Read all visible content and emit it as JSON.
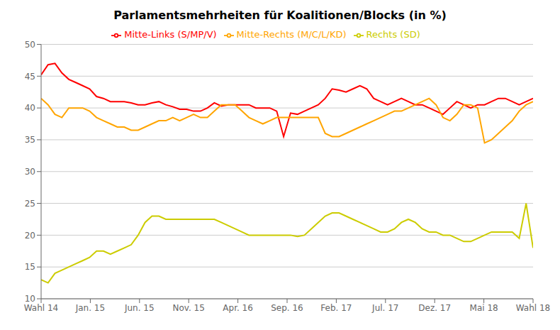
{
  "chart_data": {
    "type": "line",
    "title": "Parlamentsmehrheiten für Koalitionen/Blocks (in %)",
    "x": [
      0,
      0.1408,
      0.2817,
      0.4225,
      0.5634,
      0.7042,
      0.8451,
      0.9859,
      1.1268,
      1.2676,
      1.4085,
      1.5493,
      1.6901,
      1.831,
      1.9718,
      2.1127,
      2.2535,
      2.3944,
      2.5352,
      2.6761,
      2.8169,
      2.9577,
      3.0986,
      3.2394,
      3.3803,
      3.5211,
      3.662,
      3.8028,
      3.9437,
      4.0845,
      4.2254,
      4.3662,
      4.507,
      4.6479,
      4.7887,
      4.9296,
      5.0704,
      5.2113,
      5.3521,
      5.493,
      5.6338,
      5.7746,
      5.9155,
      6.0563,
      6.1972,
      6.338,
      6.4789,
      6.6197,
      6.7606,
      6.9014,
      7.0423,
      7.1831,
      7.3239,
      7.4648,
      7.6056,
      7.7465,
      7.8873,
      8.0282,
      8.169,
      8.3099,
      8.4507,
      8.5915,
      8.7324,
      8.8732,
      9.0141,
      9.1549,
      9.2958,
      9.4366,
      9.5775,
      9.7183,
      9.8592,
      10
    ],
    "xlim": [
      0,
      10
    ],
    "xticks": [
      {
        "value": 0,
        "label": "Wahl 14"
      },
      {
        "value": 1,
        "label": "Jan. 15"
      },
      {
        "value": 2,
        "label": "Jun. 15"
      },
      {
        "value": 3,
        "label": "Nov. 15"
      },
      {
        "value": 4,
        "label": "Apr. 16"
      },
      {
        "value": 5,
        "label": "Sep. 16"
      },
      {
        "value": 6,
        "label": "Feb. 17"
      },
      {
        "value": 7,
        "label": "Jul. 17"
      },
      {
        "value": 8,
        "label": "Dez. 17"
      },
      {
        "value": 9,
        "label": "Mai 18"
      },
      {
        "value": 10,
        "label": "Wahl 18"
      }
    ],
    "ylim": [
      10,
      50
    ],
    "yticks": [
      10,
      15,
      20,
      25,
      30,
      35,
      40,
      45,
      50
    ],
    "grid": true,
    "legend": "top",
    "series": [
      {
        "name": "Mitte-Links (S/MP/V)",
        "color": "#ff0000",
        "values": [
          45.2,
          46.8,
          47.0,
          45.5,
          44.5,
          44.0,
          43.5,
          43.0,
          41.8,
          41.5,
          41.0,
          41.0,
          41.0,
          40.8,
          40.5,
          40.5,
          40.8,
          41.0,
          40.5,
          40.2,
          39.8,
          39.8,
          39.5,
          39.5,
          40.0,
          40.8,
          40.3,
          40.5,
          40.5,
          40.5,
          40.5,
          40.0,
          40.0,
          40.0,
          39.5,
          35.5,
          39.2,
          39.0,
          39.5,
          40.0,
          40.5,
          41.5,
          43.0,
          42.8,
          42.5,
          43.0,
          43.5,
          43.0,
          41.5,
          41.0,
          40.5,
          41.0,
          41.5,
          41.0,
          40.5,
          40.5,
          40.0,
          39.5,
          39.0,
          40.0,
          41.0,
          40.5,
          40.0,
          40.5,
          40.5,
          41.0,
          41.5,
          41.5,
          41.0,
          40.5,
          41.0,
          41.5
        ]
      },
      {
        "name": "Mitte-Rechts (M/C/L/KD)",
        "color": "#ffa500",
        "values": [
          41.5,
          40.5,
          39.0,
          38.5,
          40.0,
          40.0,
          40.0,
          39.5,
          38.5,
          38.0,
          37.5,
          37.0,
          37.0,
          36.5,
          36.5,
          37.0,
          37.5,
          38.0,
          38.0,
          38.5,
          38.0,
          38.5,
          39.0,
          38.5,
          38.5,
          39.5,
          40.5,
          40.5,
          40.5,
          39.5,
          38.5,
          38.0,
          37.5,
          38.0,
          38.5,
          38.5,
          38.5,
          38.5,
          38.5,
          38.5,
          38.5,
          36.0,
          35.5,
          35.5,
          36.0,
          36.5,
          37.0,
          37.5,
          38.0,
          38.5,
          39.0,
          39.5,
          39.5,
          40.0,
          40.5,
          41.0,
          41.5,
          40.5,
          38.5,
          38.0,
          39.0,
          40.5,
          40.5,
          40.0,
          34.5,
          35.0,
          36.0,
          37.0,
          38.0,
          39.5,
          40.5,
          41.0
        ]
      },
      {
        "name": "Rechts (SD)",
        "color": "#cccc00",
        "values": [
          13.0,
          12.5,
          14.0,
          14.5,
          15.0,
          15.5,
          16.0,
          16.5,
          17.5,
          17.5,
          17.0,
          17.5,
          18.0,
          18.5,
          20.0,
          22.0,
          23.0,
          23.0,
          22.5,
          22.5,
          22.5,
          22.5,
          22.5,
          22.5,
          22.5,
          22.5,
          22.0,
          21.5,
          21.0,
          20.5,
          20.0,
          20.0,
          20.0,
          20.0,
          20.0,
          20.0,
          20.0,
          19.8,
          20.0,
          21.0,
          22.0,
          23.0,
          23.5,
          23.5,
          23.0,
          22.5,
          22.0,
          21.5,
          21.0,
          20.5,
          20.5,
          21.0,
          22.0,
          22.5,
          22.0,
          21.0,
          20.5,
          20.5,
          20.0,
          20.0,
          19.5,
          19.0,
          19.0,
          19.5,
          20.0,
          20.5,
          20.5,
          20.5,
          20.5,
          19.5,
          25.0,
          18.0
        ]
      }
    ]
  }
}
